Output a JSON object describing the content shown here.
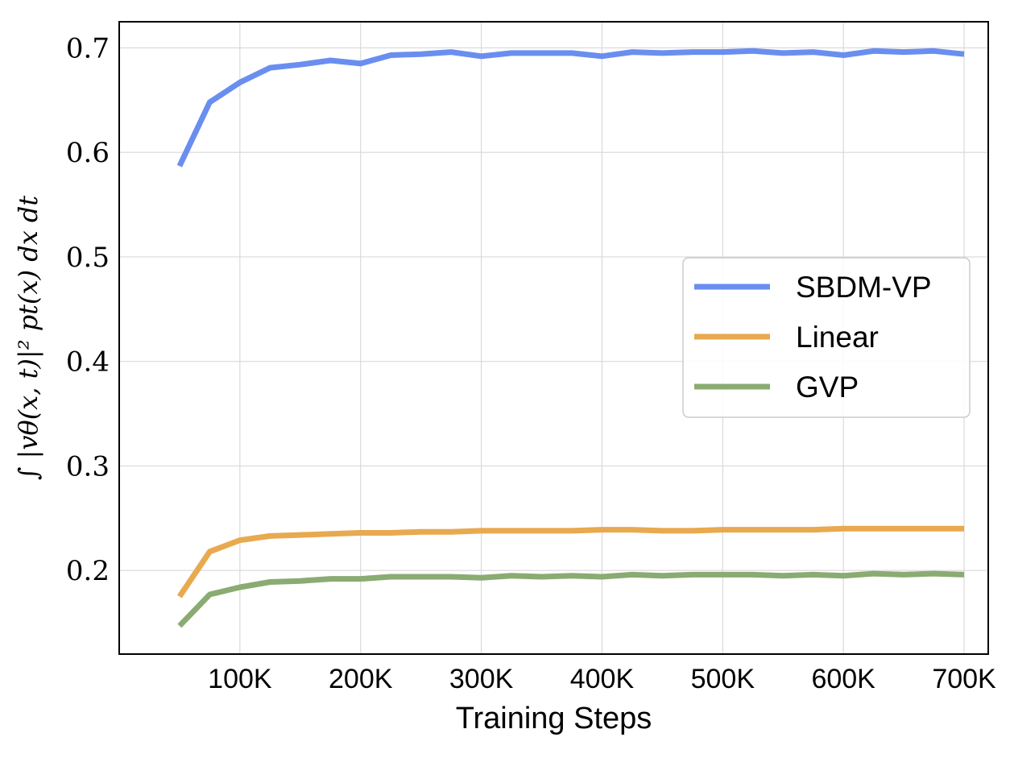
{
  "chart_data": {
    "type": "line",
    "title": "",
    "xlabel": "Training Steps",
    "ylabel": "∫ |vθ(x, t)|² pt(x) dx dt",
    "xlim": [
      0,
      720000
    ],
    "ylim": [
      0.12,
      0.725
    ],
    "grid": true,
    "legend_position": "center-right",
    "x_ticks": [
      {
        "value": 100000,
        "label": "100K"
      },
      {
        "value": 200000,
        "label": "200K"
      },
      {
        "value": 300000,
        "label": "300K"
      },
      {
        "value": 400000,
        "label": "400K"
      },
      {
        "value": 500000,
        "label": "500K"
      },
      {
        "value": 600000,
        "label": "600K"
      },
      {
        "value": 700000,
        "label": "700K"
      }
    ],
    "y_ticks": [
      {
        "value": 0.2,
        "label": "0.2"
      },
      {
        "value": 0.3,
        "label": "0.3"
      },
      {
        "value": 0.4,
        "label": "0.4"
      },
      {
        "value": 0.5,
        "label": "0.5"
      },
      {
        "value": 0.6,
        "label": "0.6"
      },
      {
        "value": 0.7,
        "label": "0.7"
      }
    ],
    "x": [
      50000,
      75000,
      100000,
      125000,
      150000,
      175000,
      200000,
      225000,
      250000,
      275000,
      300000,
      325000,
      350000,
      375000,
      400000,
      425000,
      450000,
      475000,
      500000,
      525000,
      550000,
      575000,
      600000,
      625000,
      650000,
      675000,
      700000
    ],
    "series": [
      {
        "name": "SBDM-VP",
        "color": "#6a8ef0",
        "values": [
          0.587,
          0.648,
          0.667,
          0.681,
          0.684,
          0.688,
          0.685,
          0.693,
          0.694,
          0.696,
          0.692,
          0.695,
          0.695,
          0.695,
          0.692,
          0.696,
          0.695,
          0.696,
          0.696,
          0.697,
          0.695,
          0.696,
          0.693,
          0.697,
          0.696,
          0.697,
          0.694
        ]
      },
      {
        "name": "Linear",
        "color": "#e8a94f",
        "values": [
          0.175,
          0.218,
          0.229,
          0.233,
          0.234,
          0.235,
          0.236,
          0.236,
          0.237,
          0.237,
          0.238,
          0.238,
          0.238,
          0.238,
          0.239,
          0.239,
          0.238,
          0.238,
          0.239,
          0.239,
          0.239,
          0.239,
          0.24,
          0.24,
          0.24,
          0.24,
          0.24
        ]
      },
      {
        "name": "GVP",
        "color": "#8aab72",
        "values": [
          0.147,
          0.177,
          0.184,
          0.189,
          0.19,
          0.192,
          0.192,
          0.194,
          0.194,
          0.194,
          0.193,
          0.195,
          0.194,
          0.195,
          0.194,
          0.196,
          0.195,
          0.196,
          0.196,
          0.196,
          0.195,
          0.196,
          0.195,
          0.197,
          0.196,
          0.197,
          0.196
        ]
      }
    ]
  }
}
